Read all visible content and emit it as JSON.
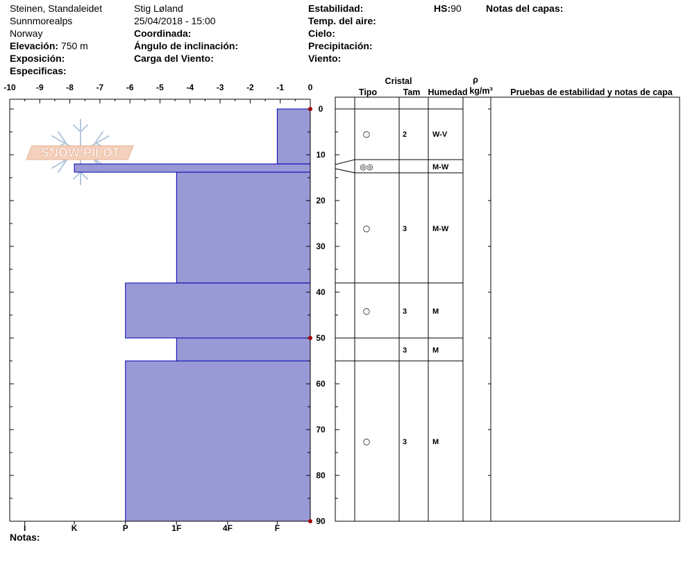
{
  "header": {
    "location": "Steinen, Standaleidet",
    "region": "Sunnmorealps",
    "country": "Norway",
    "elevation_label": "Elevación:",
    "elevation_value": "750 m",
    "exposure_label": "Exposición:",
    "specifics_label": "Especificas:",
    "observer": "Stig Løland",
    "datetime": "25/04/2018 - 15:00",
    "coord_label": "Coordinada:",
    "slope_label": "Ángulo de inclinación:",
    "wind_load_label": "Carga del Viento:",
    "stability_label": "Estabilidad:",
    "air_temp_label": "Temp. del aire:",
    "sky_label": "Cielo:",
    "precip_label": "Precipitación:",
    "wind_label": "Viento:",
    "hs_label": "HS:",
    "hs_value": "90",
    "layer_notes_label": "Notas del capas:"
  },
  "footer": {
    "notes_label": "Notas:"
  },
  "columns": {
    "crystal": "Cristal",
    "type": "Tipo",
    "size": "Tam",
    "humidity": "Humedad",
    "rho": "ρ",
    "density_unit": "kg/m³",
    "tests": "Pruebas de estabilidad y notas de capa"
  },
  "logo": {
    "text": "SNOW PILOT"
  },
  "colors": {
    "hardness_fill": "#9999d6",
    "hardness_stroke": "#0000b0",
    "marker": "#a00000"
  },
  "chart_data": {
    "type": "bar",
    "orientation": "horizontal",
    "x_axis": {
      "range": [
        -10,
        0
      ],
      "ticks": [
        "-10",
        "-9",
        "-8",
        "-7",
        "-6",
        "-5",
        "-4",
        "-3",
        "-2",
        "-1",
        "0"
      ],
      "hardness_labels": [
        {
          "label": "I",
          "value": -9.5
        },
        {
          "label": "K",
          "value": -7.85
        },
        {
          "label": "P",
          "value": -6.15
        },
        {
          "label": "1F",
          "value": -4.45
        },
        {
          "label": "4F",
          "value": -2.75
        },
        {
          "label": "F",
          "value": -1.1
        }
      ]
    },
    "y_axis": {
      "range": [
        0,
        90
      ],
      "ticks": [
        "0",
        "10",
        "20",
        "30",
        "40",
        "50",
        "60",
        "70",
        "80",
        "90"
      ]
    },
    "markers_depth": [
      0,
      50,
      90
    ],
    "layers": [
      {
        "top": 0,
        "bottom": 12,
        "hardness": -1.1,
        "type_symbol": "○",
        "size": "2",
        "humidity": "W-V"
      },
      {
        "top": 12,
        "bottom": 13.8,
        "hardness": -7.85,
        "type_symbol": "◎◎",
        "size": "",
        "humidity": "M-W"
      },
      {
        "top": 13.8,
        "bottom": 38,
        "hardness": -4.45,
        "type_symbol": "○",
        "size": "3",
        "humidity": "M-W"
      },
      {
        "top": 38,
        "bottom": 50,
        "hardness": -6.15,
        "type_symbol": "○",
        "size": "3",
        "humidity": "M"
      },
      {
        "top": 50,
        "bottom": 55,
        "hardness": -4.45,
        "type_symbol": "",
        "size": "3",
        "humidity": "M"
      },
      {
        "top": 55,
        "bottom": 90,
        "hardness": -6.15,
        "type_symbol": "○",
        "size": "3",
        "humidity": "M"
      }
    ]
  }
}
